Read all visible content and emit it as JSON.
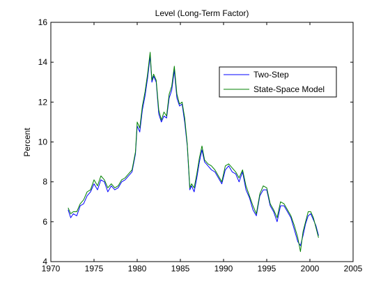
{
  "chart_data": {
    "type": "line",
    "title": "Level (Long-Term Factor)",
    "xlabel": "",
    "ylabel": "Percent",
    "xlim": [
      1970,
      2005
    ],
    "ylim": [
      4,
      16
    ],
    "x_ticks": [
      1970,
      1975,
      1980,
      1985,
      1990,
      1995,
      2000,
      2005
    ],
    "y_ticks": [
      4,
      6,
      8,
      10,
      12,
      14,
      16
    ],
    "x_tick_labels": [
      "1970",
      "1975",
      "1980",
      "1985",
      "1990",
      "1995",
      "2000",
      "2005"
    ],
    "y_tick_labels": [
      "4",
      "6",
      "8",
      "10",
      "12",
      "14",
      "16"
    ],
    "grid": false,
    "legend_position": "top-right",
    "series": [
      {
        "name": "Two-Step",
        "color": "#0000ff",
        "x": [
          1972.0,
          1972.3,
          1972.6,
          1973.0,
          1973.4,
          1973.8,
          1974.2,
          1974.6,
          1975.0,
          1975.4,
          1975.8,
          1976.2,
          1976.6,
          1977.0,
          1977.4,
          1977.8,
          1978.2,
          1978.6,
          1979.0,
          1979.4,
          1979.8,
          1980.0,
          1980.3,
          1980.6,
          1980.9,
          1981.2,
          1981.5,
          1981.7,
          1981.9,
          1982.2,
          1982.5,
          1982.8,
          1983.1,
          1983.4,
          1983.7,
          1984.0,
          1984.3,
          1984.6,
          1984.9,
          1985.2,
          1985.5,
          1985.8,
          1986.1,
          1986.3,
          1986.6,
          1986.9,
          1987.2,
          1987.5,
          1987.8,
          1988.2,
          1988.6,
          1989.0,
          1989.4,
          1989.8,
          1990.2,
          1990.6,
          1991.0,
          1991.4,
          1991.8,
          1992.2,
          1992.6,
          1993.0,
          1993.4,
          1993.8,
          1994.2,
          1994.6,
          1995.0,
          1995.4,
          1995.8,
          1996.2,
          1996.6,
          1997.0,
          1997.4,
          1997.8,
          1998.2,
          1998.6,
          1998.9,
          1999.2,
          1999.5,
          1999.8,
          2000.1,
          2000.4,
          2000.7,
          2001.0
        ],
        "y": [
          6.6,
          6.2,
          6.4,
          6.3,
          6.8,
          6.9,
          7.3,
          7.5,
          7.9,
          7.6,
          8.1,
          8.0,
          7.5,
          7.8,
          7.6,
          7.7,
          8.0,
          8.1,
          8.3,
          8.5,
          9.4,
          10.8,
          10.5,
          11.6,
          12.3,
          13.2,
          14.3,
          13.0,
          13.3,
          13.0,
          11.4,
          11.0,
          11.3,
          11.2,
          12.2,
          12.6,
          13.6,
          12.2,
          11.8,
          11.9,
          11.0,
          9.8,
          7.6,
          7.8,
          7.5,
          8.2,
          9.0,
          9.6,
          9.0,
          8.8,
          8.6,
          8.5,
          8.2,
          7.9,
          8.6,
          8.8,
          8.5,
          8.4,
          8.0,
          8.5,
          7.6,
          7.2,
          6.6,
          6.3,
          7.3,
          7.6,
          7.6,
          6.8,
          6.5,
          6.0,
          6.8,
          6.8,
          6.5,
          6.2,
          5.6,
          5.0,
          4.8,
          5.3,
          5.9,
          6.3,
          6.4,
          6.1,
          5.8,
          5.3
        ]
      },
      {
        "name": "State-Space Model",
        "color": "#008000",
        "x": [
          1972.0,
          1972.3,
          1972.6,
          1973.0,
          1973.4,
          1973.8,
          1974.2,
          1974.6,
          1975.0,
          1975.4,
          1975.8,
          1976.2,
          1976.6,
          1977.0,
          1977.4,
          1977.8,
          1978.2,
          1978.6,
          1979.0,
          1979.4,
          1979.8,
          1980.0,
          1980.3,
          1980.6,
          1980.9,
          1981.2,
          1981.5,
          1981.7,
          1981.9,
          1982.2,
          1982.5,
          1982.8,
          1983.1,
          1983.4,
          1983.7,
          1984.0,
          1984.3,
          1984.6,
          1984.9,
          1985.2,
          1985.5,
          1985.8,
          1986.1,
          1986.3,
          1986.6,
          1986.9,
          1987.2,
          1987.5,
          1987.8,
          1988.2,
          1988.6,
          1989.0,
          1989.4,
          1989.8,
          1990.2,
          1990.6,
          1991.0,
          1991.4,
          1991.8,
          1992.2,
          1992.6,
          1993.0,
          1993.4,
          1993.8,
          1994.2,
          1994.6,
          1995.0,
          1995.4,
          1995.8,
          1996.2,
          1996.6,
          1997.0,
          1997.4,
          1997.8,
          1998.2,
          1998.6,
          1998.9,
          1999.2,
          1999.5,
          1999.8,
          2000.1,
          2000.4,
          2000.7,
          2001.0
        ],
        "y": [
          6.7,
          6.4,
          6.5,
          6.5,
          6.9,
          7.1,
          7.5,
          7.6,
          8.1,
          7.8,
          8.3,
          8.1,
          7.7,
          7.9,
          7.7,
          7.8,
          8.1,
          8.2,
          8.4,
          8.6,
          9.5,
          11.0,
          10.7,
          11.8,
          12.5,
          13.4,
          14.5,
          13.1,
          13.4,
          13.1,
          11.6,
          11.1,
          11.5,
          11.3,
          12.4,
          12.8,
          13.8,
          12.4,
          11.9,
          12.0,
          11.2,
          9.9,
          7.7,
          7.9,
          7.7,
          8.4,
          9.2,
          9.8,
          9.1,
          8.9,
          8.8,
          8.6,
          8.3,
          8.0,
          8.8,
          8.9,
          8.7,
          8.5,
          8.2,
          8.6,
          7.8,
          7.3,
          6.8,
          6.4,
          7.4,
          7.8,
          7.7,
          6.9,
          6.6,
          6.2,
          7.0,
          6.9,
          6.6,
          6.3,
          5.8,
          5.2,
          4.5,
          5.5,
          6.0,
          6.5,
          6.5,
          6.2,
          5.7,
          5.2
        ]
      }
    ]
  }
}
